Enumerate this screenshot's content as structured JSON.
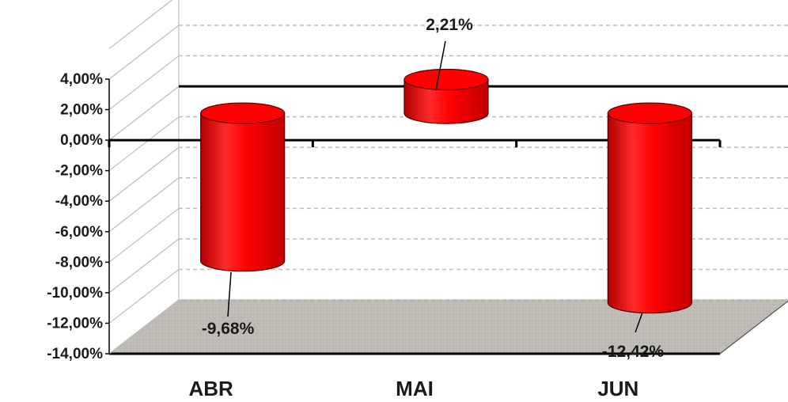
{
  "chart_data": {
    "type": "bar",
    "style": "3d-cylinder",
    "categories": [
      "ABR",
      "MAI",
      "JUN"
    ],
    "values": [
      -9.68,
      2.21,
      -12.42
    ],
    "value_labels": [
      "-9,68%",
      "2,21%",
      "-12,42%"
    ],
    "ylim": [
      -14,
      4
    ],
    "yticks": [
      4,
      2,
      0,
      -2,
      -4,
      -6,
      -8,
      -10,
      -12,
      -14
    ],
    "ytick_labels": [
      "4,00%",
      "2,00%",
      "0,00%",
      "-2,00%",
      "-4,00%",
      "-6,00%",
      "-8,00%",
      "-10,00%",
      "-12,00%",
      "-14,00%"
    ],
    "title": "",
    "xlabel": "",
    "ylabel": "",
    "grid": true,
    "legend": "none"
  },
  "colors": {
    "bar": "#ff0000",
    "bar_dark": "#b00000",
    "bar_light": "#ff5a5a",
    "floor": "#c0bcb6",
    "grid": "#bdbdbd",
    "axis": "#000000"
  }
}
